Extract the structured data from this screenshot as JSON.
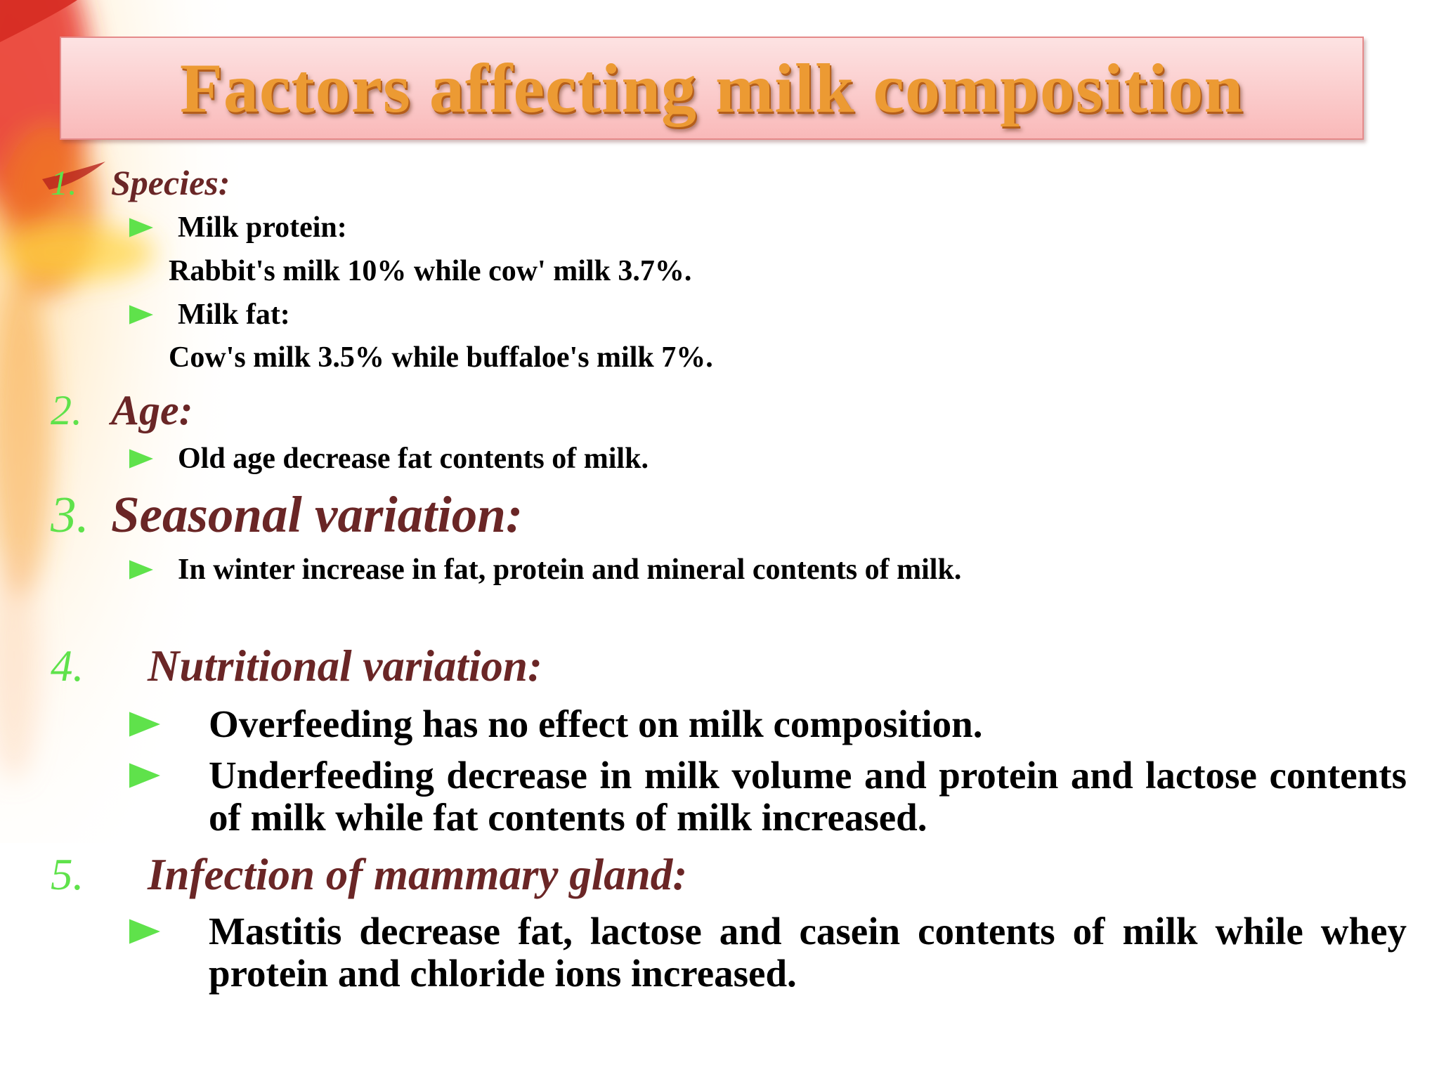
{
  "title": "Factors affecting milk composition",
  "sections": [
    {
      "number": "1.",
      "heading": "Species:",
      "items": [
        {
          "text": "Milk protein:",
          "detail": "Rabbit's milk 10% while cow' milk 3.7%."
        },
        {
          "text": "Milk fat:",
          "detail": "Cow's milk 3.5% while buffaloe's milk 7%."
        }
      ]
    },
    {
      "number": "2.",
      "heading": "Age:",
      "items": [
        {
          "text": "Old age decrease fat contents of milk."
        }
      ]
    },
    {
      "number": "3.",
      "heading": "Seasonal variation:",
      "items": [
        {
          "text": "In winter increase in fat, protein and mineral contents of milk."
        }
      ]
    },
    {
      "number": "4.",
      "heading": "Nutritional variation:",
      "items": [
        {
          "text": "Overfeeding has no effect on milk composition."
        },
        {
          "text": "Underfeeding decrease in milk volume and protein and lactose contents of milk while fat contents of milk increased."
        }
      ]
    },
    {
      "number": "5.",
      "heading": "Infection of mammary gland:",
      "items": [
        {
          "text": "Mastitis decrease fat, lactose and casein contents of milk while whey protein and chloride ions increased."
        }
      ]
    }
  ]
}
